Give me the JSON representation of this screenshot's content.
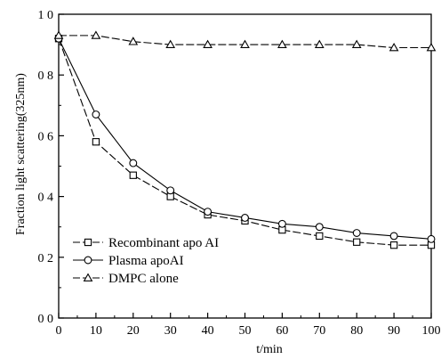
{
  "chart_data": {
    "type": "line",
    "title": "",
    "xlabel": "t/min",
    "ylabel": "Fraction light scattering(325nm)",
    "xlim": [
      0,
      100
    ],
    "ylim": [
      0,
      1.0
    ],
    "xticks": [
      0,
      10,
      20,
      30,
      40,
      50,
      60,
      70,
      80,
      90,
      100
    ],
    "xtick_labels": [
      "0",
      "10",
      "20",
      "30",
      "40",
      "50",
      "60",
      "70",
      "80",
      "90",
      "100"
    ],
    "yticks": [
      0,
      0.2,
      0.4,
      0.6,
      0.8,
      1.0
    ],
    "ytick_labels": [
      "0 0",
      "0 2",
      "0 4",
      "0 6",
      "0 8",
      "1 0"
    ],
    "grid": false,
    "legend_position": "bottom-left",
    "x": [
      0,
      10,
      20,
      30,
      40,
      50,
      60,
      70,
      80,
      90,
      100
    ],
    "series": [
      {
        "name": "Recombinant apo AI",
        "marker": "square",
        "dash": "dashed",
        "values": [
          0.92,
          0.58,
          0.47,
          0.4,
          0.34,
          0.32,
          0.29,
          0.27,
          0.25,
          0.24,
          0.24
        ]
      },
      {
        "name": "Plasma apoAI",
        "marker": "circle",
        "dash": "solid",
        "values": [
          0.92,
          0.67,
          0.51,
          0.42,
          0.35,
          0.33,
          0.31,
          0.3,
          0.28,
          0.27,
          0.26
        ]
      },
      {
        "name": "DMPC alone",
        "marker": "triangle",
        "dash": "dashed",
        "values": [
          0.93,
          0.93,
          0.91,
          0.9,
          0.9,
          0.9,
          0.9,
          0.9,
          0.9,
          0.89,
          0.89
        ]
      }
    ]
  }
}
